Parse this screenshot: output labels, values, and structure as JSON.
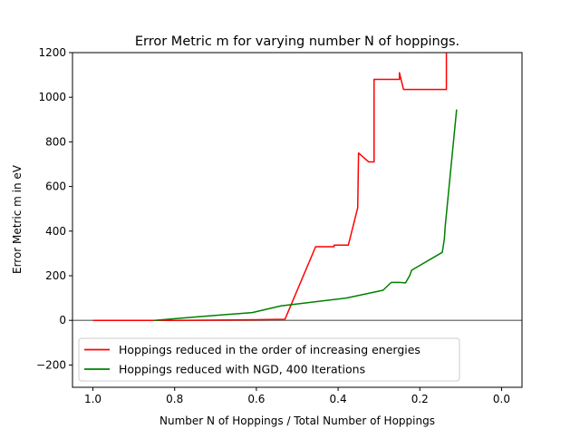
{
  "chart_data": {
    "type": "line",
    "title": "Error Metric m for varying number N of hoppings.",
    "xlabel": "Number N of Hoppings / Total Number of Hoppings",
    "ylabel": "Error Metric m in eV",
    "xlim": [
      1.05,
      -0.05
    ],
    "ylim": [
      -300,
      1200
    ],
    "x_inverted": true,
    "xticks": [
      1.0,
      0.8,
      0.6,
      0.4,
      0.2,
      0.0
    ],
    "xtick_labels": [
      "1.0",
      "0.8",
      "0.6",
      "0.4",
      "0.2",
      "0.0"
    ],
    "yticks": [
      -200,
      0,
      200,
      400,
      600,
      800,
      1000,
      1200
    ],
    "ytick_labels": [
      "−200",
      "0",
      "200",
      "400",
      "600",
      "800",
      "1000",
      "1200"
    ],
    "grid": false,
    "legend_position": "lower-left",
    "reference_line": {
      "y": 0,
      "color": "#808080"
    },
    "series": [
      {
        "name": "Hoppings reduced in the order of increasing energies",
        "color": "#ff0000",
        "points": [
          [
            1.0,
            0
          ],
          [
            0.8,
            0
          ],
          [
            0.6,
            3
          ],
          [
            0.53,
            5
          ],
          [
            0.455,
            330
          ],
          [
            0.41,
            330
          ],
          [
            0.41,
            337
          ],
          [
            0.375,
            337
          ],
          [
            0.352,
            505
          ],
          [
            0.35,
            750
          ],
          [
            0.325,
            710
          ],
          [
            0.312,
            710
          ],
          [
            0.312,
            1080
          ],
          [
            0.25,
            1080
          ],
          [
            0.25,
            1110
          ],
          [
            0.24,
            1035
          ],
          [
            0.135,
            1035
          ],
          [
            0.135,
            1200
          ]
        ]
      },
      {
        "name": "Hoppings reduced with NGD, 400 Iterations",
        "color": "#008000",
        "points": [
          [
            0.85,
            0
          ],
          [
            0.75,
            15
          ],
          [
            0.61,
            35
          ],
          [
            0.54,
            65
          ],
          [
            0.38,
            100
          ],
          [
            0.29,
            135
          ],
          [
            0.27,
            170
          ],
          [
            0.25,
            170
          ],
          [
            0.235,
            168
          ],
          [
            0.225,
            200
          ],
          [
            0.22,
            225
          ],
          [
            0.145,
            305
          ],
          [
            0.14,
            365
          ],
          [
            0.138,
            420
          ],
          [
            0.11,
            945
          ]
        ]
      }
    ]
  }
}
